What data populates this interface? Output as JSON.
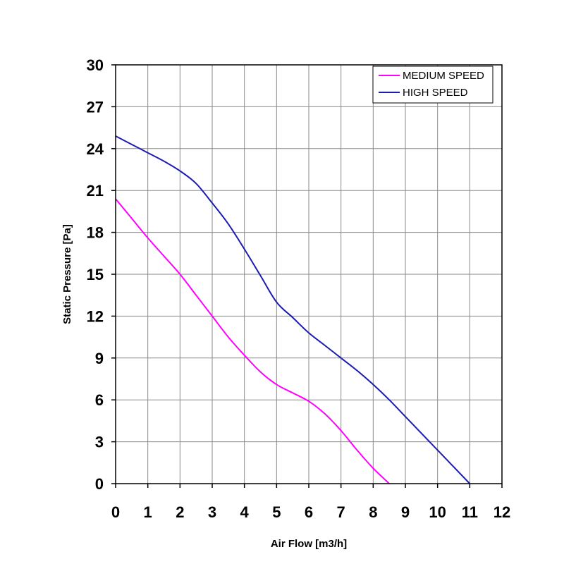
{
  "chart_data": {
    "type": "line",
    "xlabel": "Air Flow [m3/h]",
    "ylabel": "Static Pressure [Pa]",
    "xlim": [
      0,
      12
    ],
    "ylim": [
      0,
      30
    ],
    "xticks": [
      "0",
      "1",
      "2",
      "3",
      "4",
      "5",
      "6",
      "7",
      "8",
      "9",
      "10",
      "11",
      "12"
    ],
    "yticks": [
      "0",
      "3",
      "6",
      "9",
      "12",
      "15",
      "18",
      "21",
      "24",
      "27",
      "30"
    ],
    "grid": true,
    "legend_position": "top-right",
    "series": [
      {
        "name": "MEDIUM SPEED",
        "color": "#ff00ff",
        "x": [
          0,
          0.5,
          1,
          1.5,
          2,
          2.5,
          3,
          3.5,
          4,
          4.5,
          5,
          5.5,
          6,
          6.5,
          7,
          7.5,
          8,
          8.5
        ],
        "y": [
          20.4,
          19.0,
          17.6,
          16.3,
          15.0,
          13.5,
          12.0,
          10.5,
          9.2,
          8.0,
          7.1,
          6.5,
          5.9,
          5.0,
          3.8,
          2.4,
          1.1,
          0
        ]
      },
      {
        "name": "HIGH SPEED",
        "color": "#1c1cb0",
        "x": [
          0,
          0.5,
          1,
          1.5,
          2,
          2.5,
          3,
          3.5,
          4,
          4.5,
          5,
          5.5,
          6,
          6.5,
          7,
          7.5,
          8,
          8.5,
          9,
          9.5,
          10,
          10.5,
          11
        ],
        "y": [
          24.9,
          24.3,
          23.7,
          23.1,
          22.4,
          21.5,
          20.1,
          18.6,
          16.8,
          14.9,
          13.0,
          11.9,
          10.8,
          9.9,
          9.0,
          8.1,
          7.1,
          6.0,
          4.8,
          3.6,
          2.4,
          1.2,
          0
        ]
      }
    ]
  }
}
